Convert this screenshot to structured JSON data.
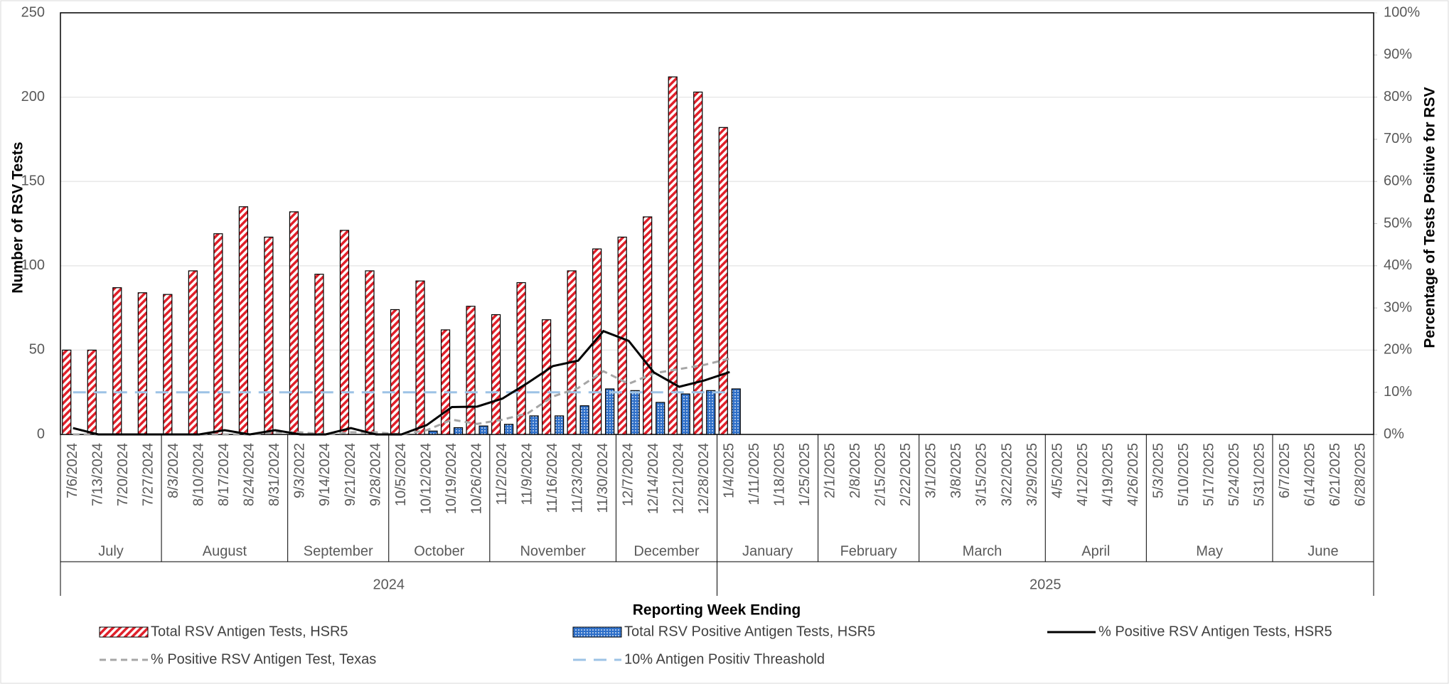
{
  "chart_data": {
    "type": "bar-line",
    "y_label": "Number of RSV Tests",
    "y2_label": "Percentage of Tests Positive for RSV",
    "x_label": "Reporting Week Ending",
    "categories": [
      "7/6/2024",
      "7/13/2024",
      "7/20/2024",
      "7/27/2024",
      "8/3/2024",
      "8/10/2024",
      "8/17/2024",
      "8/24/2024",
      "8/31/2024",
      "9/3/2022",
      "9/14/2024",
      "9/21/2024",
      "9/28/2024",
      "10/5/2024",
      "10/12/2024",
      "10/19/2024",
      "10/26/2024",
      "11/2/2024",
      "11/9/2024",
      "11/16/2024",
      "11/23/2024",
      "11/30/2024",
      "12/7/2024",
      "12/14/2024",
      "12/21/2024",
      "12/28/2024",
      "1/4/2025",
      "1/11/2025",
      "1/18/2025",
      "1/25/2025",
      "2/1/2025",
      "2/8/2025",
      "2/15/2025",
      "2/22/2025",
      "3/1/2025",
      "3/8/2025",
      "3/15/2025",
      "3/22/2025",
      "3/29/2025",
      "4/5/2025",
      "4/12/2025",
      "4/19/2025",
      "4/26/2025",
      "5/3/2025",
      "5/10/2025",
      "5/17/2025",
      "5/24/2025",
      "5/31/2025",
      "6/7/2025",
      "6/14/2025",
      "6/21/2025",
      "6/28/2025"
    ],
    "month_groups": [
      {
        "label": "July",
        "count": 4
      },
      {
        "label": "August",
        "count": 5
      },
      {
        "label": "September",
        "count": 4
      },
      {
        "label": "October",
        "count": 4
      },
      {
        "label": "November",
        "count": 5
      },
      {
        "label": "December",
        "count": 4
      },
      {
        "label": "January",
        "count": 4
      },
      {
        "label": "February",
        "count": 4
      },
      {
        "label": "March",
        "count": 5
      },
      {
        "label": "April",
        "count": 4
      },
      {
        "label": "May",
        "count": 5
      },
      {
        "label": "June",
        "count": 4
      }
    ],
    "year_groups": [
      {
        "label": "2024",
        "count": 26
      },
      {
        "label": "2025",
        "count": 26
      }
    ],
    "ylim": [
      0,
      250
    ],
    "yticks": [
      0,
      50,
      100,
      150,
      200,
      250
    ],
    "y2lim": [
      0,
      100
    ],
    "y2ticks": [
      {
        "value": 0,
        "label": "0%"
      },
      {
        "value": 10,
        "label": "10%"
      },
      {
        "value": 20,
        "label": "20%"
      },
      {
        "value": 30,
        "label": "30%"
      },
      {
        "value": 40,
        "label": "40%"
      },
      {
        "value": 50,
        "label": "50%"
      },
      {
        "value": 60,
        "label": "60%"
      },
      {
        "value": 70,
        "label": "70%"
      },
      {
        "value": 80,
        "label": "80%"
      },
      {
        "value": 90,
        "label": "90%"
      },
      {
        "value": 100,
        "label": "100%"
      }
    ],
    "grid": true,
    "series": [
      {
        "name": "Total RSV Antigen Tests, HSR5",
        "kind": "bar",
        "pattern": "stripes",
        "color": "#e0202a",
        "values": [
          50,
          50,
          87,
          84,
          83,
          97,
          119,
          135,
          117,
          132,
          95,
          121,
          97,
          74,
          91,
          62,
          76,
          71,
          90,
          68,
          97,
          110,
          117,
          129,
          212,
          203,
          182,
          null,
          null,
          null,
          null,
          null,
          null,
          null,
          null,
          null,
          null,
          null,
          null,
          null,
          null,
          null,
          null,
          null,
          null,
          null,
          null,
          null,
          null,
          null,
          null,
          null
        ]
      },
      {
        "name": "Total RSV Positive Antigen Tests, HSR5",
        "kind": "bar",
        "pattern": "dots",
        "color": "#2e6fc8",
        "values": [
          0,
          0,
          0,
          0,
          0,
          0,
          0,
          0,
          0,
          0,
          0,
          0,
          0,
          0,
          2,
          4,
          5,
          6,
          11,
          11,
          17,
          27,
          26,
          19,
          24,
          26,
          27,
          null,
          null,
          null,
          null,
          null,
          null,
          null,
          null,
          null,
          null,
          null,
          null,
          null,
          null,
          null,
          null,
          null,
          null,
          null,
          null,
          null,
          null,
          null,
          null,
          null
        ]
      },
      {
        "name": "% Positive RSV Antigen Tests, HSR5",
        "kind": "line",
        "axis": "y2",
        "color": "#000000",
        "dash": "solid",
        "values": [
          1.5,
          0,
          0,
          0,
          0,
          0,
          1,
          0,
          1,
          0,
          0,
          1.5,
          0,
          0,
          2.2,
          6.5,
          6.6,
          8.5,
          12.2,
          16.2,
          17.5,
          24.5,
          22.2,
          14.7,
          11.3,
          12.8,
          14.8,
          null,
          null,
          null,
          null,
          null,
          null,
          null,
          null,
          null,
          null,
          null,
          null,
          null,
          null,
          null,
          null,
          null,
          null,
          null,
          null,
          null,
          null,
          null,
          null,
          null
        ]
      },
      {
        "name": "% Positive RSV Antigen Test, Texas",
        "kind": "line",
        "axis": "y2",
        "color": "#a6a6a6",
        "dash": "dashed",
        "values": [
          0,
          0,
          0,
          0,
          0,
          0,
          0,
          0,
          0.5,
          0.5,
          0,
          0.5,
          0.5,
          0,
          1,
          3.5,
          2.5,
          3.5,
          5,
          9,
          11,
          15,
          12,
          14.5,
          15.5,
          16.5,
          18,
          null,
          null,
          null,
          null,
          null,
          null,
          null,
          null,
          null,
          null,
          null,
          null,
          null,
          null,
          null,
          null,
          null,
          null,
          null,
          null,
          null,
          null,
          null,
          null,
          null
        ]
      },
      {
        "name": "10% Antigen Positiv Threashold",
        "kind": "line",
        "axis": "y2",
        "color": "#9dc3e6",
        "dash": "longdash",
        "values": [
          10,
          10,
          10,
          10,
          10,
          10,
          10,
          10,
          10,
          10,
          10,
          10,
          10,
          10,
          10,
          10,
          10,
          10,
          10,
          10,
          10,
          10,
          10,
          10,
          10,
          10,
          10,
          null,
          null,
          null,
          null,
          null,
          null,
          null,
          null,
          null,
          null,
          null,
          null,
          null,
          null,
          null,
          null,
          null,
          null,
          null,
          null,
          null,
          null,
          null,
          null,
          null
        ]
      }
    ]
  }
}
